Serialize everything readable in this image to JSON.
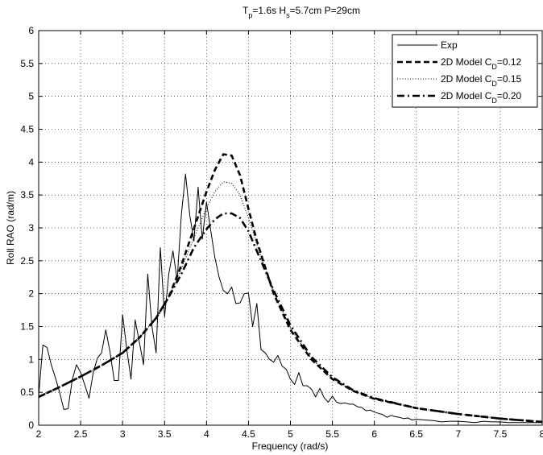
{
  "chart_data": {
    "type": "line",
    "title": {
      "parts": [
        {
          "text": "T",
          "sub": false
        },
        {
          "text": "p",
          "sub": true
        },
        {
          "text": "=1.6s H",
          "sub": false
        },
        {
          "text": "s",
          "sub": true
        },
        {
          "text": "=5.7cm P=29cm",
          "sub": false
        }
      ]
    },
    "xlabel": "Frequency (rad/s)",
    "ylabel": "Roll RAO (rad/m)",
    "xlim": [
      2,
      8
    ],
    "ylim": [
      0,
      6
    ],
    "xticks": [
      "2",
      "2.5",
      "3",
      "3.5",
      "4",
      "4.5",
      "5",
      "5.5",
      "6",
      "6.5",
      "7",
      "7.5",
      "8"
    ],
    "yticks": [
      "0",
      "0.5",
      "1",
      "1.5",
      "2",
      "2.5",
      "3",
      "3.5",
      "4",
      "4.5",
      "5",
      "5.5",
      "6"
    ],
    "grid": true,
    "legend_position": "top-right",
    "series": [
      {
        "name": "Exp",
        "style": "solid",
        "label_parts": [
          {
            "text": "Exp",
            "sub": false
          }
        ],
        "x": [
          2.0,
          2.05,
          2.1,
          2.15,
          2.2,
          2.25,
          2.3,
          2.35,
          2.4,
          2.45,
          2.5,
          2.55,
          2.6,
          2.65,
          2.7,
          2.75,
          2.8,
          2.85,
          2.9,
          2.95,
          3.0,
          3.05,
          3.1,
          3.15,
          3.2,
          3.25,
          3.3,
          3.35,
          3.4,
          3.45,
          3.5,
          3.55,
          3.6,
          3.65,
          3.7,
          3.75,
          3.8,
          3.85,
          3.9,
          3.95,
          4.0,
          4.05,
          4.1,
          4.15,
          4.2,
          4.25,
          4.3,
          4.35,
          4.4,
          4.45,
          4.5,
          4.55,
          4.6,
          4.65,
          4.7,
          4.75,
          4.8,
          4.85,
          4.9,
          4.95,
          5.0,
          5.05,
          5.1,
          5.15,
          5.2,
          5.25,
          5.3,
          5.35,
          5.4,
          5.45,
          5.5,
          5.55,
          5.6,
          5.65,
          5.7,
          5.75,
          5.8,
          5.85,
          5.9,
          5.95,
          6.0,
          6.05,
          6.1,
          6.15,
          6.2,
          6.25,
          6.3,
          6.35,
          6.4,
          6.45,
          6.5,
          6.6,
          6.7,
          6.8,
          6.9,
          7.0,
          7.1,
          7.2,
          7.3,
          7.4,
          7.5,
          7.6,
          7.7,
          7.8,
          7.9,
          8.0
        ],
        "y": [
          0.44,
          1.22,
          1.18,
          0.92,
          0.72,
          0.5,
          0.24,
          0.25,
          0.69,
          0.92,
          0.8,
          0.61,
          0.41,
          0.8,
          1.02,
          1.1,
          1.45,
          1.12,
          0.68,
          0.68,
          1.68,
          1.15,
          0.7,
          1.6,
          1.26,
          0.92,
          2.3,
          1.5,
          1.1,
          2.7,
          1.65,
          2.3,
          2.65,
          2.2,
          3.2,
          3.82,
          3.2,
          2.8,
          3.62,
          2.83,
          3.39,
          2.97,
          2.55,
          2.25,
          2.05,
          2.0,
          2.1,
          1.85,
          1.86,
          2.0,
          2.01,
          1.5,
          1.85,
          1.15,
          1.1,
          1.0,
          0.96,
          1.06,
          0.9,
          0.85,
          0.7,
          0.62,
          0.8,
          0.6,
          0.6,
          0.55,
          0.43,
          0.56,
          0.42,
          0.35,
          0.44,
          0.35,
          0.33,
          0.34,
          0.32,
          0.32,
          0.28,
          0.27,
          0.22,
          0.23,
          0.2,
          0.18,
          0.16,
          0.12,
          0.15,
          0.13,
          0.12,
          0.1,
          0.11,
          0.08,
          0.09,
          0.08,
          0.07,
          0.05,
          0.06,
          0.06,
          0.05,
          0.04,
          0.06,
          0.05,
          0.05,
          0.04,
          0.04,
          0.04,
          0.04,
          0.04
        ]
      },
      {
        "name": "2D Model CD=0.12",
        "style": "dashed",
        "label_parts": [
          {
            "text": "2D Model C",
            "sub": false
          },
          {
            "text": "D",
            "sub": true
          },
          {
            "text": "=0.12",
            "sub": false
          }
        ],
        "x": [
          2.0,
          2.25,
          2.5,
          2.75,
          3.0,
          3.2,
          3.4,
          3.55,
          3.7,
          3.85,
          4.0,
          4.1,
          4.2,
          4.3,
          4.4,
          4.5,
          4.6,
          4.8,
          5.0,
          5.25,
          5.5,
          5.75,
          6.0,
          6.5,
          7.0,
          7.5,
          8.0
        ],
        "y": [
          0.43,
          0.58,
          0.74,
          0.91,
          1.1,
          1.33,
          1.63,
          1.95,
          2.43,
          2.99,
          3.55,
          3.88,
          4.12,
          4.1,
          3.8,
          3.29,
          2.8,
          2.0,
          1.45,
          1.0,
          0.7,
          0.52,
          0.4,
          0.26,
          0.17,
          0.1,
          0.05
        ]
      },
      {
        "name": "2D Model CD=0.15",
        "style": "dotted",
        "label_parts": [
          {
            "text": "2D Model C",
            "sub": false
          },
          {
            "text": "D",
            "sub": true
          },
          {
            "text": "=0.15",
            "sub": false
          }
        ],
        "x": [
          2.0,
          2.25,
          2.5,
          2.75,
          3.0,
          3.2,
          3.4,
          3.55,
          3.7,
          3.85,
          4.0,
          4.1,
          4.2,
          4.3,
          4.4,
          4.5,
          4.6,
          4.8,
          5.0,
          5.25,
          5.5,
          5.75,
          6.0,
          6.5,
          7.0,
          7.5,
          8.0
        ],
        "y": [
          0.43,
          0.58,
          0.74,
          0.91,
          1.1,
          1.33,
          1.63,
          1.95,
          2.38,
          2.85,
          3.3,
          3.55,
          3.7,
          3.68,
          3.5,
          3.15,
          2.75,
          2.02,
          1.47,
          1.01,
          0.71,
          0.52,
          0.4,
          0.26,
          0.17,
          0.1,
          0.05
        ]
      },
      {
        "name": "2D Model CD=0.20",
        "style": "dashdot",
        "label_parts": [
          {
            "text": "2D Model C",
            "sub": false
          },
          {
            "text": "D",
            "sub": true
          },
          {
            "text": "=0.20",
            "sub": false
          }
        ],
        "x": [
          2.0,
          2.25,
          2.5,
          2.75,
          3.0,
          3.2,
          3.4,
          3.55,
          3.7,
          3.85,
          4.0,
          4.1,
          4.2,
          4.3,
          4.4,
          4.5,
          4.6,
          4.8,
          5.0,
          5.25,
          5.5,
          5.75,
          6.0,
          6.5,
          7.0,
          7.5,
          8.0
        ],
        "y": [
          0.43,
          0.58,
          0.74,
          0.91,
          1.1,
          1.33,
          1.63,
          1.95,
          2.3,
          2.7,
          2.98,
          3.13,
          3.22,
          3.22,
          3.15,
          2.95,
          2.65,
          2.05,
          1.52,
          1.04,
          0.73,
          0.53,
          0.41,
          0.26,
          0.17,
          0.1,
          0.05
        ]
      }
    ]
  }
}
